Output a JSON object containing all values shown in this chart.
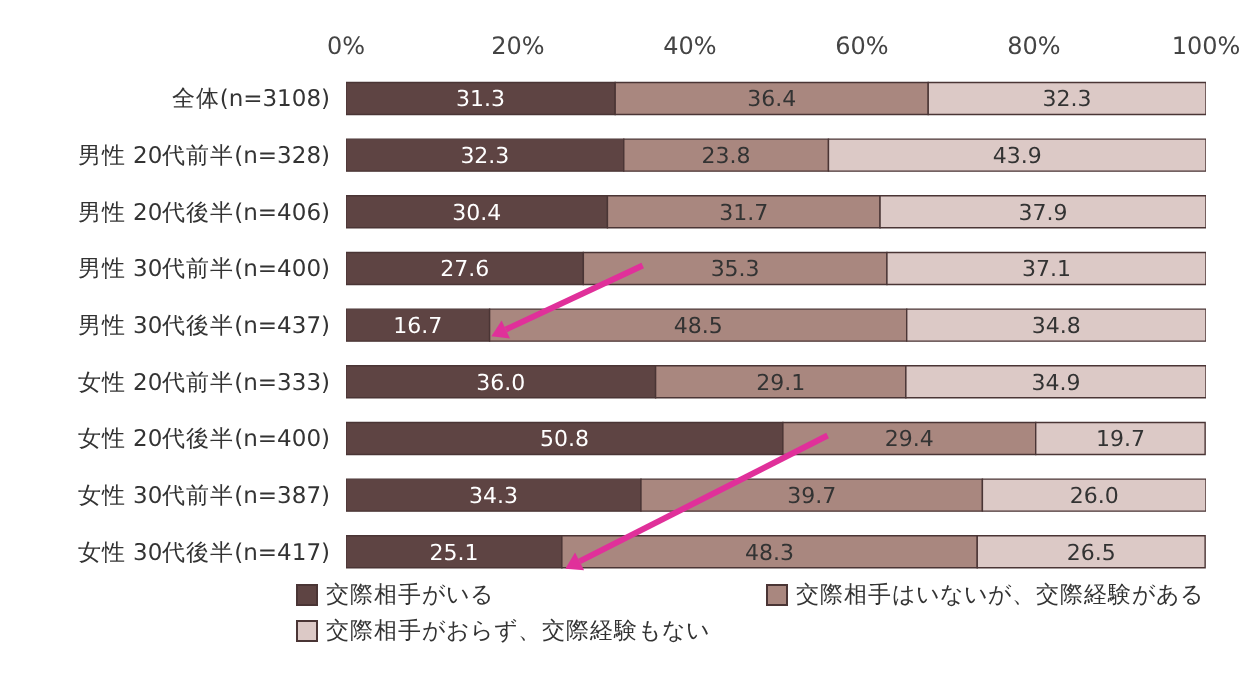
{
  "chart_data": {
    "type": "bar",
    "orientation": "horizontal",
    "stacked": true,
    "categories": [
      "全体(n=3108)",
      "男性 20代前半(n=328)",
      "男性 20代後半(n=406)",
      "男性 30代前半(n=400)",
      "男性 30代後半(n=437)",
      "女性 20代前半(n=333)",
      "女性 20代後半(n=400)",
      "女性 30代前半(n=387)",
      "女性 30代後半(n=417)"
    ],
    "series": [
      {
        "name": "交際相手がいる",
        "color": "#5e4443",
        "values": [
          31.3,
          32.3,
          30.4,
          27.6,
          16.7,
          36.0,
          50.8,
          34.3,
          25.1
        ],
        "value_labels": [
          "31.3",
          "32.3",
          "30.4",
          "27.6",
          "16.7",
          "36.0",
          "50.8",
          "34.3",
          "25.1"
        ]
      },
      {
        "name": "交際相手はいないが、交際経験がある",
        "color": "#a9877f",
        "values": [
          36.4,
          23.8,
          31.7,
          35.3,
          48.5,
          29.1,
          29.4,
          39.7,
          48.3
        ],
        "value_labels": [
          "36.4",
          "23.8",
          "31.7",
          "35.3",
          "48.5",
          "29.1",
          "29.4",
          "39.7",
          "48.3"
        ]
      },
      {
        "name": "交際相手がおらず、交際経験もない",
        "color": "#dcc9c6",
        "values": [
          32.3,
          43.9,
          37.9,
          37.1,
          34.8,
          34.9,
          19.7,
          26.0,
          26.5
        ],
        "value_labels": [
          "32.3",
          "43.9",
          "37.9",
          "37.1",
          "34.8",
          "34.9",
          "19.7",
          "26.0",
          "26.5"
        ]
      }
    ],
    "xlim": [
      0,
      100
    ],
    "xticks": [
      {
        "value": 0,
        "label": "0%"
      },
      {
        "value": 20,
        "label": "20%"
      },
      {
        "value": 40,
        "label": "40%"
      },
      {
        "value": 60,
        "label": "60%"
      },
      {
        "value": 80,
        "label": "80%"
      },
      {
        "value": 100,
        "label": "100%"
      }
    ],
    "legend": "bottom"
  }
}
